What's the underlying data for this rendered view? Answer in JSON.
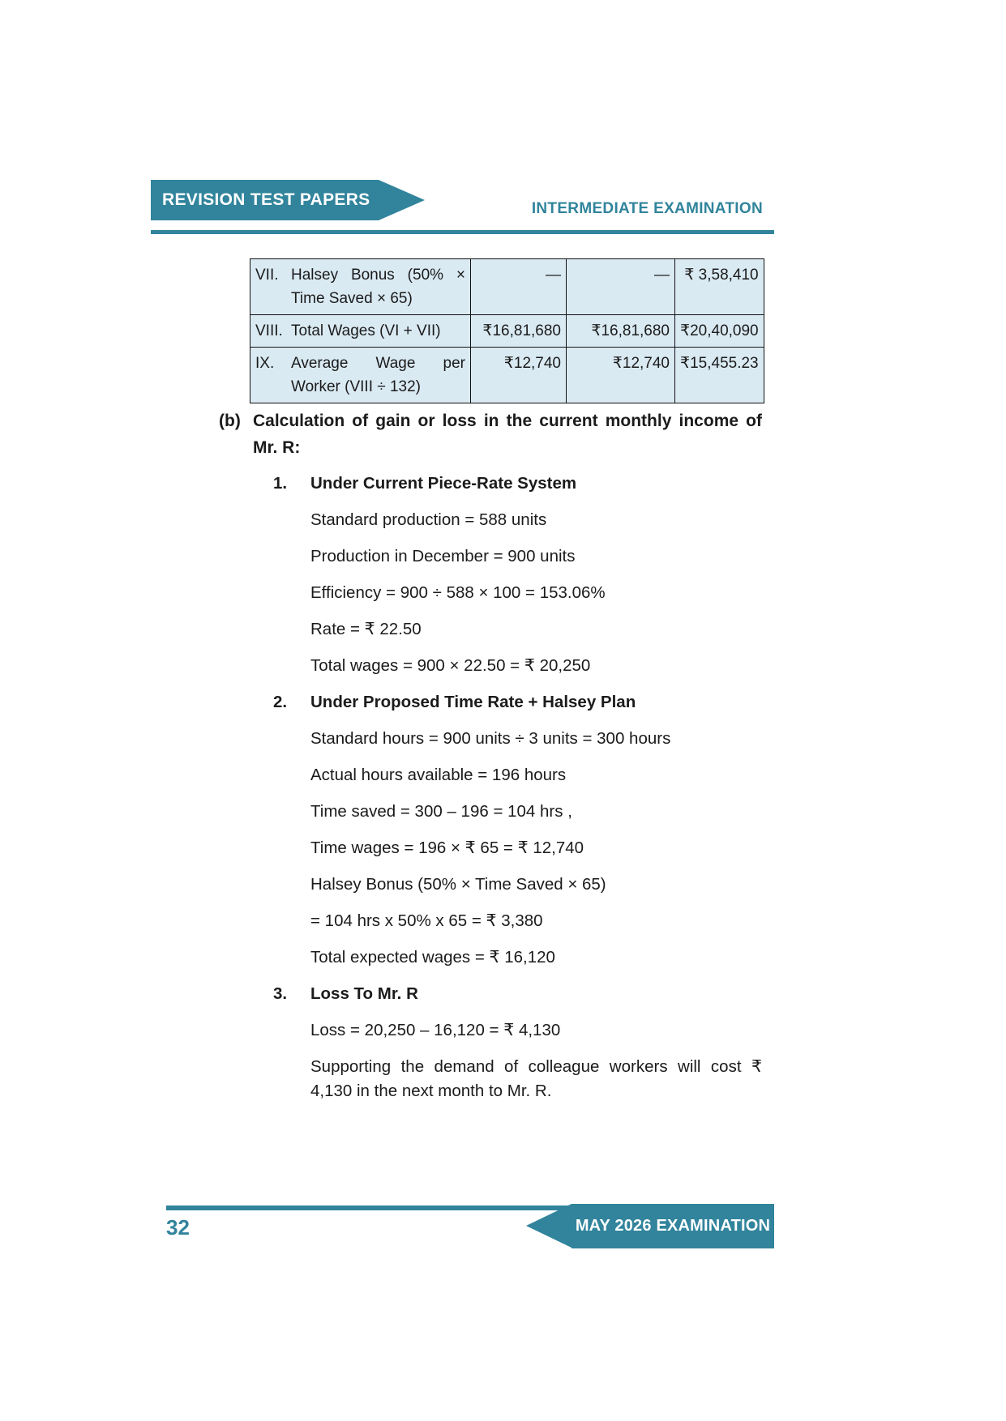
{
  "header": {
    "banner_label": "REVISION TEST PAPERS",
    "exam_label": "INTERMEDIATE EXAMINATION"
  },
  "table": {
    "rows": [
      {
        "no": "VII.",
        "label": "Halsey Bonus (50% × Time Saved × 65)",
        "col1": "—",
        "col2": "—",
        "col3": "₹ 3,58,410"
      },
      {
        "no": "VIII.",
        "label": "Total Wages (VI + VII)",
        "col1": "₹16,81,680",
        "col2": "₹16,81,680",
        "col3": "₹20,40,090"
      },
      {
        "no": "IX.",
        "label": "Average Wage per Worker (VIII ÷ 132)",
        "col1": "₹12,740",
        "col2": "₹12,740",
        "col3": "₹15,455.23"
      }
    ]
  },
  "section_b": {
    "marker": "(b)",
    "heading": "Calculation of gain or loss in the current monthly income of Mr. R:",
    "items": [
      {
        "no": "1.",
        "title": "Under Current Piece-Rate System",
        "lines": [
          "Standard production = 588 units",
          "Production in December = 900 units",
          "Efficiency = 900 ÷ 588 × 100 = 153.06%",
          "Rate = ₹ 22.50",
          "Total wages = 900 × 22.50 = ₹ 20,250"
        ]
      },
      {
        "no": "2.",
        "title": "Under Proposed Time Rate + Halsey Plan",
        "lines": [
          "Standard hours = 900 units ÷ 3 units = 300 hours",
          "Actual hours available = 196 hours",
          "Time saved = 300 – 196 = 104 hrs ,",
          "Time wages = 196 × ₹ 65 = ₹ 12,740",
          "Halsey Bonus (50% × Time Saved × 65)",
          "= 104 hrs x 50% x 65 = ₹ 3,380",
          "Total expected wages = ₹ 16,120"
        ]
      },
      {
        "no": "3.",
        "title": "Loss To Mr. R",
        "lines": [
          "Loss = 20,250 – 16,120 = ₹ 4,130",
          "Supporting the demand of colleague workers will cost ₹ 4,130 in the next month to Mr. R."
        ]
      }
    ]
  },
  "footer": {
    "page_number": "32",
    "banner_label": "MAY 2026 EXAMINATION"
  },
  "colors": {
    "teal": "#31849c",
    "table_bg": "#daeaf3",
    "text": "#1b1b1b"
  }
}
